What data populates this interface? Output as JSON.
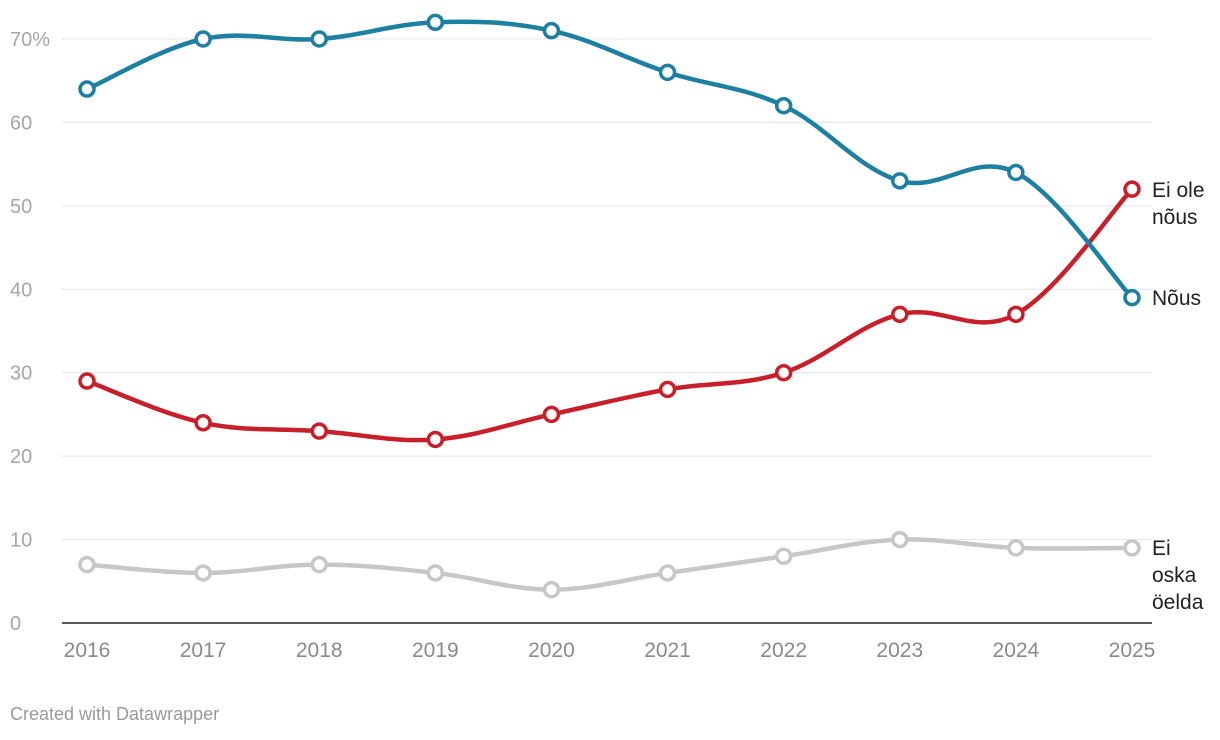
{
  "chart_data": {
    "type": "line",
    "x": [
      "2016",
      "2017",
      "2018",
      "2019",
      "2020",
      "2021",
      "2022",
      "2023",
      "2024",
      "2025"
    ],
    "ylim": [
      0,
      72
    ],
    "yticks": [
      0,
      10,
      20,
      30,
      40,
      50,
      60,
      70
    ],
    "ytick_labels": [
      "0",
      "10",
      "20",
      "30",
      "40",
      "50",
      "60",
      "70%"
    ],
    "grid": true,
    "legend": "direct labels at line ends",
    "series": [
      {
        "name": "Nõus",
        "label_lines": [
          "Nõus"
        ],
        "color": "#1d7fa1",
        "values": [
          64,
          70,
          70,
          72,
          71,
          66,
          62,
          53,
          54,
          39
        ]
      },
      {
        "name": "Ei ole nõus",
        "label_lines": [
          "Ei ole",
          "nõus"
        ],
        "color": "#c8202a",
        "values": [
          29,
          24,
          23,
          22,
          25,
          28,
          30,
          37,
          37,
          52
        ]
      },
      {
        "name": "Ei oska öelda",
        "label_lines": [
          "Ei",
          "oska",
          "öelda"
        ],
        "color": "#c7c7c7",
        "values": [
          7,
          6,
          7,
          6,
          4,
          6,
          8,
          10,
          9,
          9
        ]
      }
    ]
  },
  "footer": {
    "credit": "Created with Datawrapper"
  }
}
